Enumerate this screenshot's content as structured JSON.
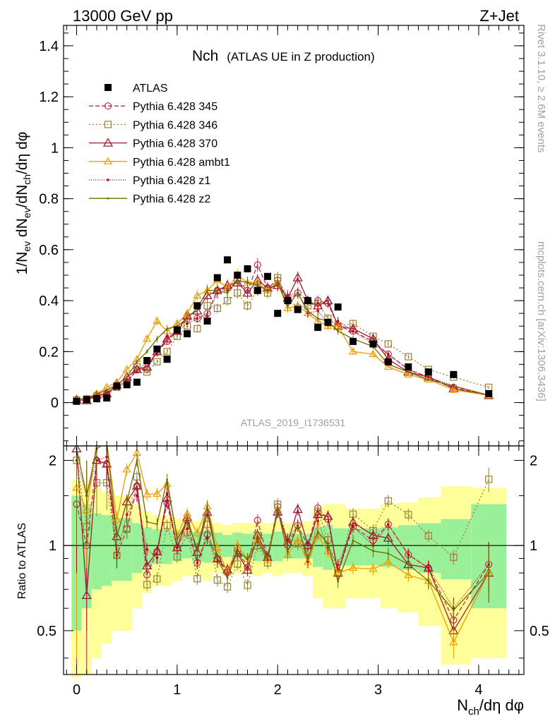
{
  "header": {
    "left_label": "13000 GeV pp",
    "right_label": "Z+Jet"
  },
  "side_text": {
    "rivet": "Rivet 3.1.10, ≥ 2.6M events",
    "mcplots": "mcplots.cern.ch [arXiv:1306.3436]"
  },
  "analysis_id": "ATLAS_2019_I1736531",
  "chart_data": {
    "type": "scatter",
    "title": "Nch",
    "subtitle": "(ATLAS UE in Z production)",
    "xlabel": "N_ch/dη dφ",
    "ylabel": "1/N_ev dN_ev/dN_ch/dη dφ",
    "ratio_ylabel": "Ratio to ATLAS",
    "xlim": [
      -0.13,
      4.45
    ],
    "ylim": [
      -0.17,
      1.48
    ],
    "ratio_ylim": [
      0.35,
      2.25
    ],
    "x_ticks": [
      "0",
      "1",
      "2",
      "3",
      "4"
    ],
    "y_ticks": [
      "0",
      "0.2",
      "0.4",
      "0.6",
      "0.8",
      "1",
      "1.2",
      "1.4"
    ],
    "ratio_ticks": [
      "0.5",
      "1",
      "2"
    ],
    "legend_position": "top-left",
    "x": [
      0.0,
      0.1,
      0.2,
      0.3,
      0.4,
      0.5,
      0.6,
      0.7,
      0.8,
      0.9,
      1.0,
      1.1,
      1.2,
      1.3,
      1.4,
      1.5,
      1.6,
      1.7,
      1.8,
      1.9,
      2.0,
      2.1,
      2.2,
      2.3,
      2.4,
      2.5,
      2.6,
      2.75,
      2.95,
      3.1,
      3.3,
      3.5,
      3.75,
      4.1
    ],
    "data_series": {
      "name": "ATLAS",
      "values": [
        0.005,
        0.012,
        0.015,
        0.018,
        0.065,
        0.07,
        0.08,
        0.165,
        0.21,
        0.17,
        0.285,
        0.27,
        0.38,
        0.32,
        0.49,
        0.56,
        0.5,
        0.525,
        0.44,
        0.495,
        0.35,
        0.4,
        0.365,
        0.4,
        0.295,
        0.315,
        0.375,
        0.24,
        0.23,
        0.16,
        0.14,
        0.12,
        0.11,
        0.035
      ],
      "band_inner": [
        0.5,
        0.4,
        0.3,
        0.28,
        0.25,
        0.25,
        0.2,
        0.16,
        0.14,
        0.14,
        0.12,
        0.1,
        0.12,
        0.13,
        0.11,
        0.09,
        0.11,
        0.1,
        0.12,
        0.1,
        0.12,
        0.1,
        0.1,
        0.1,
        0.16,
        0.18,
        0.15,
        0.15,
        0.15,
        0.16,
        0.18,
        0.2,
        0.24,
        0.4
      ],
      "band_outer": [
        0.7,
        0.65,
        0.6,
        0.55,
        0.5,
        0.5,
        0.4,
        0.32,
        0.28,
        0.28,
        0.25,
        0.22,
        0.22,
        0.25,
        0.2,
        0.18,
        0.2,
        0.2,
        0.22,
        0.2,
        0.22,
        0.2,
        0.2,
        0.22,
        0.35,
        0.4,
        0.4,
        0.35,
        0.35,
        0.4,
        0.42,
        0.48,
        0.62,
        0.6
      ]
    },
    "series": [
      {
        "name": "Pythia 6.428 345",
        "color": "#b2334d",
        "dash": "6,3",
        "marker": "circle-open",
        "values": [
          0.007,
          0.012,
          0.03,
          0.035,
          0.06,
          0.08,
          0.13,
          0.13,
          0.2,
          0.24,
          0.28,
          0.33,
          0.33,
          0.35,
          0.44,
          0.45,
          0.48,
          0.44,
          0.54,
          0.45,
          0.48,
          0.4,
          0.43,
          0.4,
          0.4,
          0.39,
          0.3,
          0.28,
          0.24,
          0.19,
          0.13,
          0.1,
          0.06,
          0.03
        ]
      },
      {
        "name": "Pythia 6.428 346",
        "color": "#998033",
        "dash": "2,3",
        "marker": "square-open",
        "values": [
          0.01,
          0.014,
          0.025,
          0.03,
          0.06,
          0.08,
          0.14,
          0.12,
          0.16,
          0.2,
          0.26,
          0.3,
          0.29,
          0.38,
          0.37,
          0.4,
          0.43,
          0.38,
          0.44,
          0.43,
          0.49,
          0.41,
          0.37,
          0.38,
          0.39,
          0.33,
          0.3,
          0.31,
          0.26,
          0.23,
          0.18,
          0.13,
          0.1,
          0.06
        ]
      },
      {
        "name": "Pythia 6.428 370",
        "color": "#a01c33",
        "dash": "",
        "marker": "triangle-open",
        "values": [
          0.011,
          0.008,
          0.03,
          0.035,
          0.07,
          0.1,
          0.13,
          0.14,
          0.2,
          0.25,
          0.28,
          0.34,
          0.36,
          0.42,
          0.44,
          0.46,
          0.47,
          0.43,
          0.48,
          0.45,
          0.46,
          0.41,
          0.49,
          0.4,
          0.38,
          0.4,
          0.3,
          0.29,
          0.25,
          0.17,
          0.12,
          0.1,
          0.055,
          0.028
        ]
      },
      {
        "name": "Pythia 6.428 ambt1",
        "color": "#ef9c00",
        "dash": "",
        "marker": "triangle-open-small",
        "values": [
          0.008,
          0.016,
          0.035,
          0.06,
          0.08,
          0.13,
          0.17,
          0.25,
          0.32,
          0.28,
          0.31,
          0.35,
          0.42,
          0.44,
          0.48,
          0.45,
          0.5,
          0.47,
          0.47,
          0.44,
          0.47,
          0.37,
          0.38,
          0.35,
          0.32,
          0.3,
          0.3,
          0.2,
          0.19,
          0.14,
          0.11,
          0.09,
          0.05,
          0.028
        ]
      },
      {
        "name": "Pythia 6.428 z1",
        "color": "#c20000",
        "dash": "1,2",
        "marker": "dot",
        "values": [
          0.01,
          0.018,
          0.03,
          0.037,
          0.06,
          0.09,
          0.12,
          0.16,
          0.19,
          0.26,
          0.28,
          0.31,
          0.33,
          0.34,
          0.43,
          0.44,
          0.48,
          0.47,
          0.46,
          0.44,
          0.46,
          0.42,
          0.43,
          0.35,
          0.36,
          0.31,
          0.32,
          0.28,
          0.23,
          0.19,
          0.13,
          0.1,
          0.066,
          0.03
        ]
      },
      {
        "name": "Pythia 6.428 z2",
        "color": "#6b6b00",
        "dash": "",
        "marker": "dot-small",
        "values": [
          0.011,
          0.018,
          0.033,
          0.05,
          0.07,
          0.1,
          0.16,
          0.2,
          0.25,
          0.29,
          0.3,
          0.33,
          0.37,
          0.44,
          0.44,
          0.43,
          0.48,
          0.47,
          0.46,
          0.44,
          0.47,
          0.38,
          0.43,
          0.36,
          0.33,
          0.32,
          0.28,
          0.25,
          0.22,
          0.15,
          0.12,
          0.09,
          0.065,
          0.028
        ]
      }
    ]
  }
}
